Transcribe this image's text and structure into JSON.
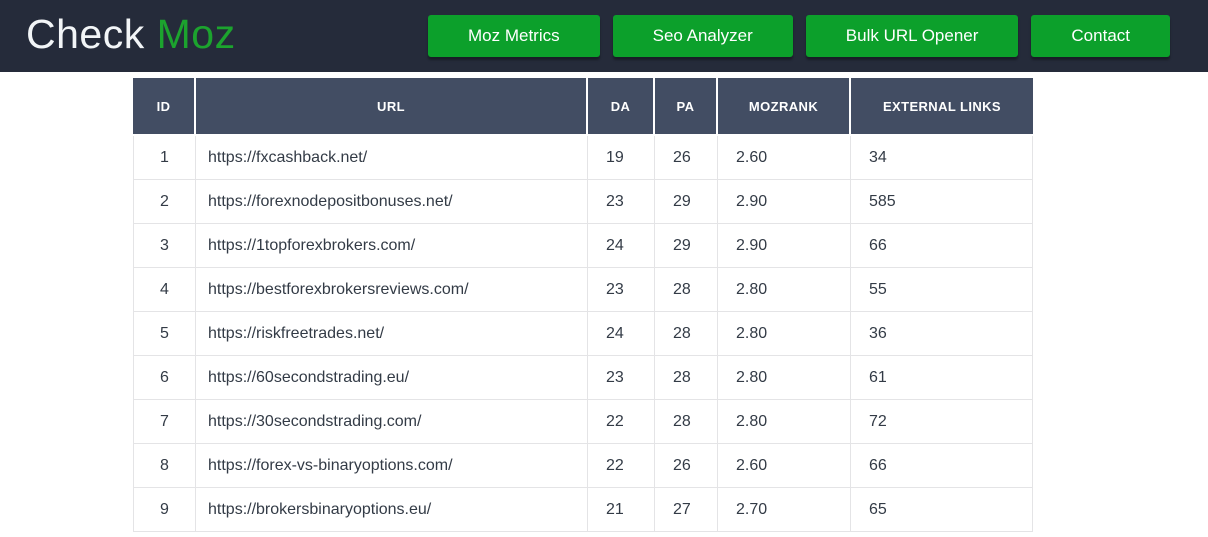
{
  "brand": {
    "name_primary": "Check ",
    "name_accent": "Moz"
  },
  "nav": {
    "buttons": [
      {
        "id": "moz-metrics",
        "label": "Moz Metrics"
      },
      {
        "id": "seo-analyzer",
        "label": "Seo Analyzer"
      },
      {
        "id": "bulk-url-opener",
        "label": "Bulk URL Opener"
      },
      {
        "id": "contact",
        "label": "Contact"
      }
    ]
  },
  "table": {
    "columns": [
      {
        "key": "id",
        "label": "ID"
      },
      {
        "key": "url",
        "label": "URL"
      },
      {
        "key": "da",
        "label": "DA"
      },
      {
        "key": "pa",
        "label": "PA"
      },
      {
        "key": "mozrank",
        "label": "MOZRANK"
      },
      {
        "key": "external_links",
        "label": "EXTERNAL LINKS"
      }
    ],
    "rows": [
      {
        "id": "1",
        "url": "https://fxcashback.net/",
        "da": "19",
        "pa": "26",
        "mozrank": "2.60",
        "external_links": "34"
      },
      {
        "id": "2",
        "url": "https://forexnodepositbonuses.net/",
        "da": "23",
        "pa": "29",
        "mozrank": "2.90",
        "external_links": "585"
      },
      {
        "id": "3",
        "url": "https://1topforexbrokers.com/",
        "da": "24",
        "pa": "29",
        "mozrank": "2.90",
        "external_links": "66"
      },
      {
        "id": "4",
        "url": "https://bestforexbrokersreviews.com/",
        "da": "23",
        "pa": "28",
        "mozrank": "2.80",
        "external_links": "55"
      },
      {
        "id": "5",
        "url": "https://riskfreetrades.net/",
        "da": "24",
        "pa": "28",
        "mozrank": "2.80",
        "external_links": "36"
      },
      {
        "id": "6",
        "url": "https://60secondstrading.eu/",
        "da": "23",
        "pa": "28",
        "mozrank": "2.80",
        "external_links": "61"
      },
      {
        "id": "7",
        "url": "https://30secondstrading.com/",
        "da": "22",
        "pa": "28",
        "mozrank": "2.80",
        "external_links": "72"
      },
      {
        "id": "8",
        "url": "https://forex-vs-binaryoptions.com/",
        "da": "22",
        "pa": "26",
        "mozrank": "2.60",
        "external_links": "66"
      },
      {
        "id": "9",
        "url": "https://brokersbinaryoptions.eu/",
        "da": "21",
        "pa": "27",
        "mozrank": "2.70",
        "external_links": "65"
      }
    ]
  },
  "colors": {
    "navbar_background": "#252b3a",
    "accent_green": "#0ca02b",
    "logo_green": "#1ca32e",
    "table_header_background": "#424d63",
    "body_text": "#333b46",
    "row_border": "#e4e4e6"
  }
}
